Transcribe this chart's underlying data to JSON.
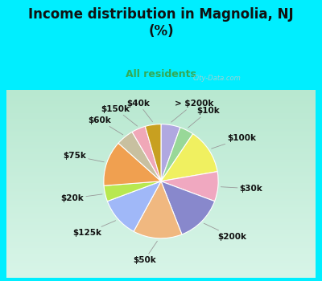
{
  "title": "Income distribution in Magnolia, NJ\n(%)",
  "subtitle": "All residents",
  "title_color": "#111111",
  "subtitle_color": "#33aa55",
  "bg_color": "#00eeff",
  "chart_bg_top": "#e0f5f0",
  "chart_bg_bottom": "#c8eee0",
  "labels": [
    "> $200k",
    "$10k",
    "$100k",
    "$30k",
    "$200k",
    "$50k",
    "$125k",
    "$20k",
    "$75k",
    "$60k",
    "$150k",
    "$40k"
  ],
  "values": [
    5.5,
    4.0,
    13.0,
    8.5,
    13.5,
    14.0,
    11.5,
    4.5,
    13.0,
    5.0,
    4.0,
    4.5
  ],
  "colors": [
    "#b0a8e0",
    "#98d898",
    "#f0f060",
    "#f0a8c0",
    "#8888cc",
    "#f0b880",
    "#a0b8f8",
    "#b8e850",
    "#f0a050",
    "#c8c0a0",
    "#f0a8b8",
    "#c8a020"
  ],
  "title_fontsize": 12,
  "subtitle_fontsize": 9,
  "label_fontsize": 7.5,
  "watermark": "City-Data.com"
}
